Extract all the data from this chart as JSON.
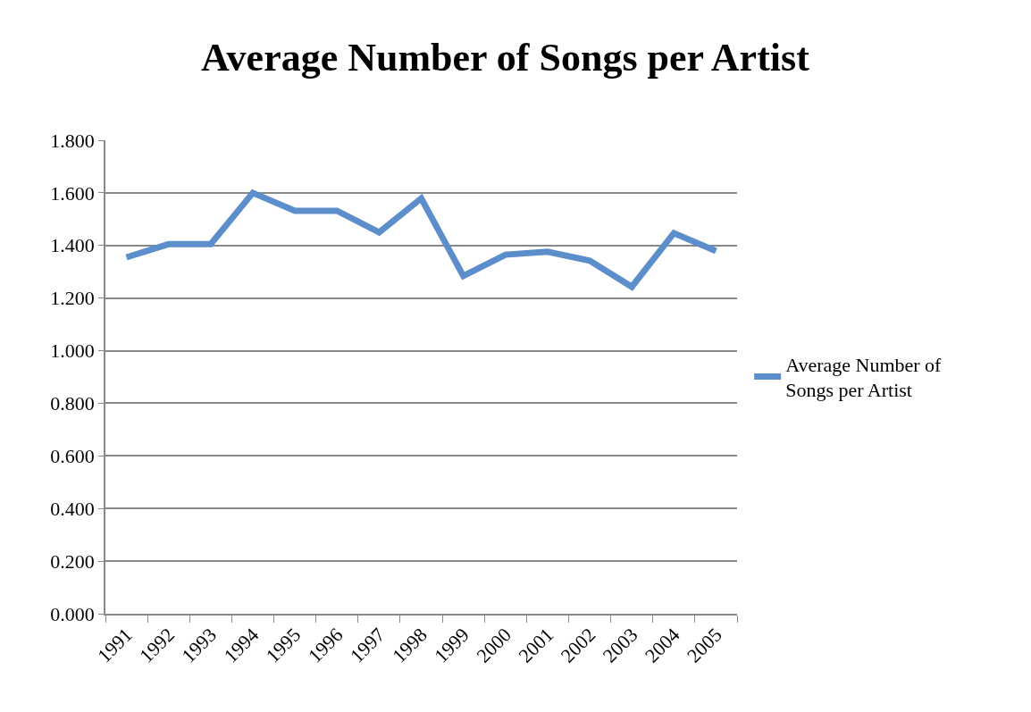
{
  "chart_data": {
    "type": "line",
    "title": "Average Number of Songs per Artist",
    "categories": [
      "1991",
      "1992",
      "1993",
      "1994",
      "1995",
      "1996",
      "1997",
      "1998",
      "1999",
      "2000",
      "2001",
      "2002",
      "2003",
      "2004",
      "2005"
    ],
    "series": [
      {
        "name": "Average Number of Songs per Artist",
        "color": "#5b8ecb",
        "values": [
          1.355,
          1.405,
          1.405,
          1.6,
          1.532,
          1.532,
          1.45,
          1.579,
          1.284,
          1.365,
          1.376,
          1.342,
          1.243,
          1.447,
          1.379
        ]
      }
    ],
    "ylim": [
      0,
      1.8
    ],
    "yticks": [
      {
        "value": 0,
        "label": "0.000"
      },
      {
        "value": 0.2,
        "label": "0.200"
      },
      {
        "value": 0.4,
        "label": "0.400"
      },
      {
        "value": 0.6,
        "label": "0.600"
      },
      {
        "value": 0.8,
        "label": "0.800"
      },
      {
        "value": 1,
        "label": "1.000"
      },
      {
        "value": 1.2,
        "label": "1.200"
      },
      {
        "value": 1.4,
        "label": "1.400"
      },
      {
        "value": 1.6,
        "label": "1.600"
      },
      {
        "value": 1.8,
        "label": "1.800"
      }
    ],
    "grid": "y",
    "legend": "right",
    "marker": "none",
    "line_style": "solid"
  }
}
